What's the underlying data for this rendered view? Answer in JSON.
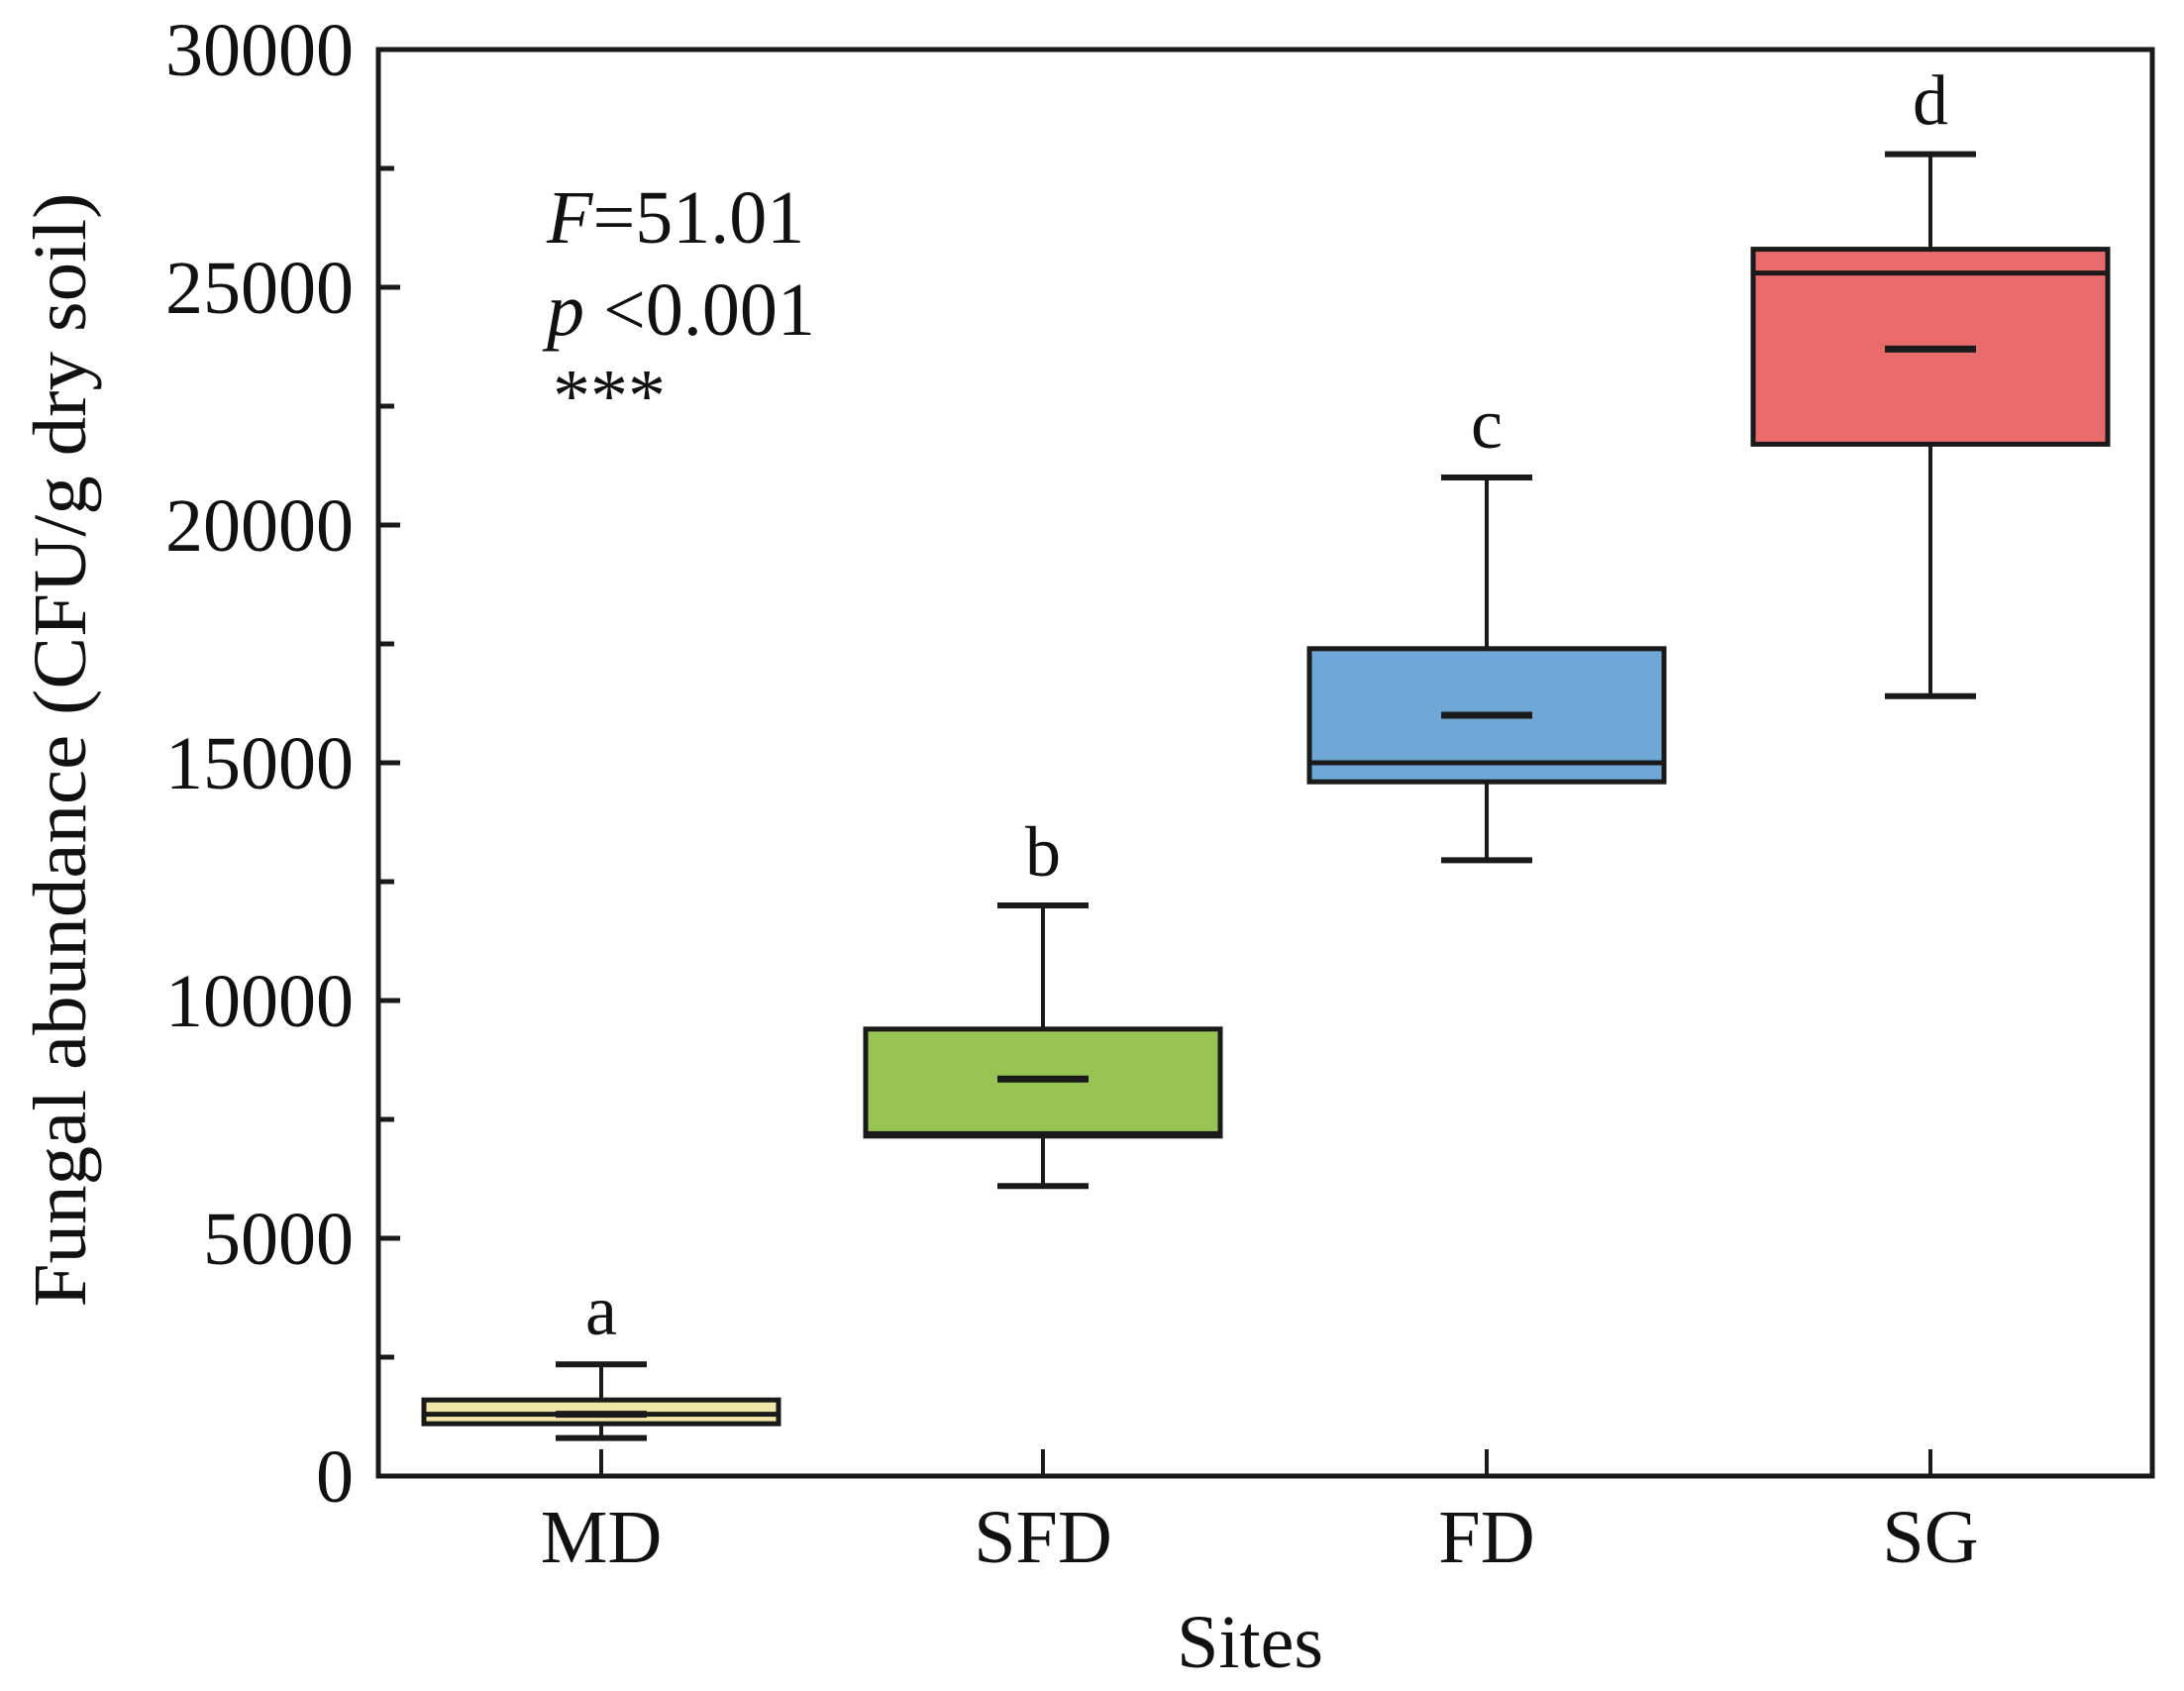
{
  "chart_data": {
    "type": "box",
    "title": "",
    "xlabel": "Sites",
    "ylabel": "Fungal abundance (CFU/g dry soil)",
    "ylim": [
      0,
      30000
    ],
    "yticks": [
      0,
      5000,
      10000,
      15000,
      20000,
      25000,
      30000
    ],
    "ytick_labels": [
      "0",
      "5000",
      "10000",
      "15000",
      "20000",
      "25000",
      "30000"
    ],
    "yminor_step": 2500,
    "grid": false,
    "categories": [
      "MD",
      "SFD",
      "FD",
      "SG"
    ],
    "boxes": [
      {
        "category": "MD",
        "whisker_low": 800,
        "q1": 1100,
        "median": 1300,
        "mean": 1300,
        "q3": 1600,
        "whisker_high": 2350,
        "letter": "a",
        "color": "#F0E6A8"
      },
      {
        "category": "SFD",
        "whisker_low": 6100,
        "q1": 7150,
        "median": 7200,
        "mean": 8350,
        "q3": 9400,
        "whisker_high": 12000,
        "letter": "b",
        "color": "#97C452"
      },
      {
        "category": "FD",
        "whisker_low": 12950,
        "q1": 14600,
        "median": 15000,
        "mean": 16000,
        "q3": 17400,
        "whisker_high": 21000,
        "letter": "c",
        "color": "#6FA8D6"
      },
      {
        "category": "SG",
        "whisker_low": 16400,
        "q1": 21700,
        "median": 25300,
        "mean": 23700,
        "q3": 25800,
        "whisker_high": 27800,
        "letter": "d",
        "color": "#EA6B6B"
      }
    ],
    "annotations": {
      "f_symbol": "F",
      "f_value": "=51.01",
      "p_symbol": "p",
      "p_value": " <0.001",
      "stars": "***"
    }
  }
}
